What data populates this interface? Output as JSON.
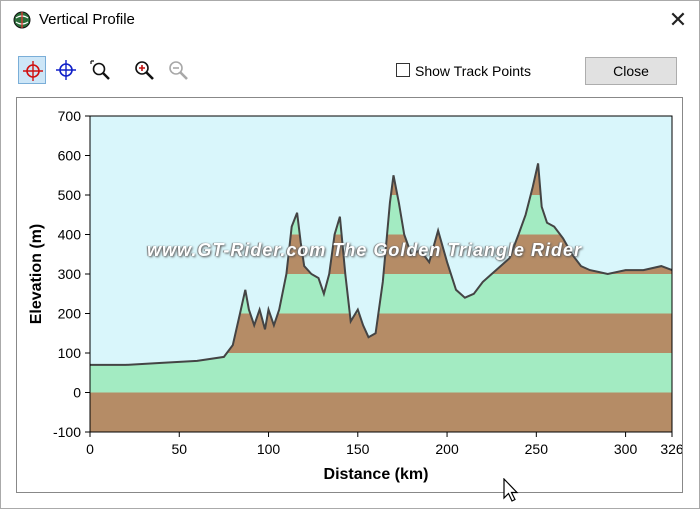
{
  "window": {
    "title": "Vertical Profile",
    "close_glyph": "✕"
  },
  "toolbar": {
    "tools": [
      {
        "name": "crosshair-red-icon",
        "active": true
      },
      {
        "name": "crosshair-blue-icon",
        "active": false
      },
      {
        "name": "zoom-window-icon",
        "active": false
      },
      {
        "name": "zoom-in-icon",
        "active": false
      },
      {
        "name": "zoom-out-icon",
        "active": false,
        "disabled": true
      }
    ],
    "show_track_points_label": "Show Track Points",
    "show_track_points_checked": false,
    "close_label": "Close"
  },
  "watermark": "www.GT-Rider.com    The Golden Triangle Rider",
  "colors": {
    "sky": "#d9f6fb",
    "band_brown": "#b58c66",
    "band_green": "#a3ebc2",
    "profile_line": "#444444"
  },
  "chart_data": {
    "type": "area",
    "xlabel": "Distance  (km)",
    "ylabel": "Elevation  (m)",
    "xlim": [
      0,
      326
    ],
    "ylim": [
      -100,
      700
    ],
    "x_ticks": [
      "0",
      "50",
      "100",
      "150",
      "200",
      "250",
      "300",
      "326"
    ],
    "x_tick_values": [
      0,
      50,
      100,
      150,
      200,
      250,
      300,
      326
    ],
    "y_ticks": [
      "700",
      "600",
      "500",
      "400",
      "300",
      "200",
      "100",
      "0",
      "-100"
    ],
    "y_tick_values": [
      700,
      600,
      500,
      400,
      300,
      200,
      100,
      0,
      -100
    ],
    "bands": [
      {
        "from": -100,
        "to": 0,
        "color": "brown"
      },
      {
        "from": 0,
        "to": 100,
        "color": "green"
      },
      {
        "from": 100,
        "to": 200,
        "color": "brown"
      },
      {
        "from": 200,
        "to": 300,
        "color": "green"
      },
      {
        "from": 300,
        "to": 400,
        "color": "brown"
      },
      {
        "from": 400,
        "to": 500,
        "color": "green"
      },
      {
        "from": 500,
        "to": 600,
        "color": "brown"
      },
      {
        "from": 600,
        "to": 700,
        "color": "green"
      }
    ],
    "x": [
      0,
      5,
      20,
      40,
      60,
      75,
      80,
      84,
      87,
      89,
      92,
      95,
      98,
      100,
      103,
      106,
      110,
      113,
      116,
      118,
      120,
      124,
      128,
      131,
      134,
      137,
      140,
      143,
      146,
      150,
      153,
      156,
      160,
      164,
      168,
      170,
      173,
      176,
      180,
      185,
      190,
      195,
      200,
      205,
      210,
      215,
      220,
      225,
      230,
      235,
      240,
      244,
      248,
      251,
      253,
      256,
      260,
      265,
      270,
      275,
      280,
      285,
      290,
      300,
      310,
      320,
      326
    ],
    "y": [
      70,
      70,
      70,
      75,
      80,
      90,
      120,
      200,
      260,
      210,
      170,
      210,
      160,
      210,
      170,
      210,
      300,
      420,
      455,
      380,
      320,
      300,
      290,
      250,
      300,
      400,
      445,
      300,
      180,
      210,
      170,
      140,
      150,
      280,
      480,
      550,
      480,
      400,
      350,
      360,
      330,
      410,
      330,
      260,
      240,
      250,
      280,
      300,
      320,
      340,
      400,
      450,
      520,
      580,
      470,
      430,
      420,
      390,
      350,
      320,
      310,
      305,
      300,
      310,
      310,
      320,
      310
    ]
  }
}
